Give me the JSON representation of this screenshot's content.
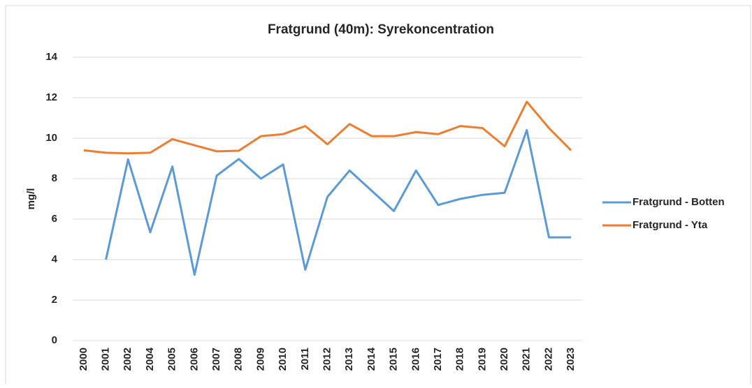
{
  "chart_data": {
    "type": "line",
    "title": "Fratgrund (40m): Syrekoncentration",
    "y_label": "mg/l",
    "categories": [
      "2000",
      "2001",
      "2002",
      "2004",
      "2005",
      "2006",
      "2007",
      "2008",
      "2009",
      "2010",
      "2011",
      "2012",
      "2013",
      "2014",
      "2015",
      "2016",
      "2017",
      "2018",
      "2019",
      "2020",
      "2021",
      "2022",
      "2023"
    ],
    "series": [
      {
        "name": "Fratgrund - Botten",
        "color": "#5b9bd5",
        "values": [
          null,
          4.0,
          8.95,
          5.35,
          8.6,
          3.25,
          8.15,
          8.97,
          8.0,
          8.7,
          3.5,
          7.1,
          8.4,
          7.4,
          6.4,
          8.4,
          6.7,
          7.0,
          7.2,
          7.3,
          10.4,
          5.1,
          5.1
        ]
      },
      {
        "name": "Fratgrund - Yta",
        "color": "#ed7d31",
        "values": [
          9.4,
          9.28,
          9.25,
          9.28,
          9.95,
          9.65,
          9.35,
          9.38,
          10.1,
          10.2,
          10.6,
          9.7,
          10.7,
          10.1,
          10.1,
          10.3,
          10.2,
          10.6,
          10.5,
          9.6,
          11.8,
          10.5,
          9.4
        ]
      }
    ],
    "ylim": [
      0,
      14
    ],
    "yticks": [
      0,
      2,
      4,
      6,
      8,
      10,
      12,
      14
    ],
    "grid": true,
    "legend": "right"
  }
}
